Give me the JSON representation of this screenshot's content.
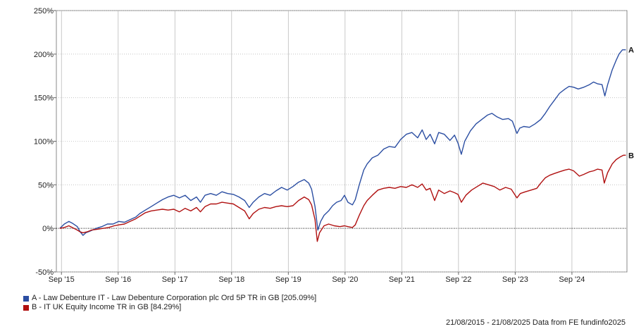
{
  "chart_data": {
    "type": "line",
    "title": "",
    "xlabel": "",
    "ylabel": "",
    "ylim": [
      -50,
      250
    ],
    "y_ticks": [
      -50,
      0,
      50,
      100,
      150,
      200,
      250
    ],
    "y_tick_labels": [
      "-50%",
      "0%",
      "50%",
      "100%",
      "150%",
      "200%",
      "250%"
    ],
    "x_range": [
      2015.58,
      2025.64
    ],
    "x_ticks": [
      {
        "t": 2015.67,
        "label": "Sep '15"
      },
      {
        "t": 2016.67,
        "label": "Sep '16"
      },
      {
        "t": 2017.67,
        "label": "Sep '17"
      },
      {
        "t": 2018.67,
        "label": "Sep '18"
      },
      {
        "t": 2019.67,
        "label": "Sep '19"
      },
      {
        "t": 2020.67,
        "label": "Sep '20"
      },
      {
        "t": 2021.67,
        "label": "Sep '21"
      },
      {
        "t": 2022.67,
        "label": "Sep '22"
      },
      {
        "t": 2023.67,
        "label": "Sep '23"
      },
      {
        "t": 2024.67,
        "label": "Sep '24"
      }
    ],
    "grid": true,
    "zero_line": true,
    "legend_position": "bottom-left",
    "series": [
      {
        "name": "A - Law Debenture IT - Law Debenture Corporation plc Ord 5P TR in GB [205.09%]",
        "short": "A",
        "color": "#2b4ea2",
        "points": [
          [
            2015.64,
            0
          ],
          [
            2015.72,
            5
          ],
          [
            2015.8,
            8
          ],
          [
            2015.86,
            6
          ],
          [
            2015.95,
            2
          ],
          [
            2016.0,
            -4
          ],
          [
            2016.05,
            -8
          ],
          [
            2016.1,
            -5
          ],
          [
            2016.18,
            -3
          ],
          [
            2016.28,
            0
          ],
          [
            2016.38,
            2
          ],
          [
            2016.48,
            5
          ],
          [
            2016.58,
            5
          ],
          [
            2016.68,
            8
          ],
          [
            2016.78,
            7
          ],
          [
            2016.88,
            10
          ],
          [
            2016.98,
            13
          ],
          [
            2017.05,
            17
          ],
          [
            2017.15,
            21
          ],
          [
            2017.25,
            25
          ],
          [
            2017.35,
            29
          ],
          [
            2017.45,
            33
          ],
          [
            2017.55,
            36
          ],
          [
            2017.65,
            38
          ],
          [
            2017.75,
            35
          ],
          [
            2017.85,
            38
          ],
          [
            2017.95,
            32
          ],
          [
            2018.05,
            36
          ],
          [
            2018.12,
            30
          ],
          [
            2018.2,
            38
          ],
          [
            2018.3,
            40
          ],
          [
            2018.4,
            38
          ],
          [
            2018.5,
            42
          ],
          [
            2018.6,
            40
          ],
          [
            2018.7,
            39
          ],
          [
            2018.8,
            36
          ],
          [
            2018.9,
            32
          ],
          [
            2018.98,
            24
          ],
          [
            2019.05,
            30
          ],
          [
            2019.15,
            36
          ],
          [
            2019.25,
            40
          ],
          [
            2019.35,
            38
          ],
          [
            2019.45,
            43
          ],
          [
            2019.55,
            47
          ],
          [
            2019.65,
            44
          ],
          [
            2019.75,
            48
          ],
          [
            2019.85,
            53
          ],
          [
            2019.95,
            56
          ],
          [
            2020.03,
            52
          ],
          [
            2020.08,
            45
          ],
          [
            2020.14,
            25
          ],
          [
            2020.19,
            -2
          ],
          [
            2020.24,
            8
          ],
          [
            2020.3,
            15
          ],
          [
            2020.38,
            20
          ],
          [
            2020.45,
            26
          ],
          [
            2020.52,
            30
          ],
          [
            2020.6,
            32
          ],
          [
            2020.66,
            38
          ],
          [
            2020.72,
            30
          ],
          [
            2020.8,
            27
          ],
          [
            2020.85,
            33
          ],
          [
            2020.92,
            50
          ],
          [
            2021.0,
            67
          ],
          [
            2021.06,
            74
          ],
          [
            2021.15,
            81
          ],
          [
            2021.25,
            84
          ],
          [
            2021.35,
            91
          ],
          [
            2021.45,
            94
          ],
          [
            2021.55,
            93
          ],
          [
            2021.65,
            102
          ],
          [
            2021.75,
            108
          ],
          [
            2021.85,
            110
          ],
          [
            2021.95,
            104
          ],
          [
            2022.03,
            113
          ],
          [
            2022.1,
            102
          ],
          [
            2022.17,
            108
          ],
          [
            2022.25,
            97
          ],
          [
            2022.32,
            110
          ],
          [
            2022.42,
            108
          ],
          [
            2022.52,
            101
          ],
          [
            2022.6,
            107
          ],
          [
            2022.66,
            98
          ],
          [
            2022.72,
            85
          ],
          [
            2022.78,
            100
          ],
          [
            2022.88,
            112
          ],
          [
            2022.98,
            120
          ],
          [
            2023.08,
            125
          ],
          [
            2023.18,
            130
          ],
          [
            2023.26,
            132
          ],
          [
            2023.35,
            128
          ],
          [
            2023.45,
            125
          ],
          [
            2023.55,
            126
          ],
          [
            2023.62,
            123
          ],
          [
            2023.7,
            109
          ],
          [
            2023.75,
            115
          ],
          [
            2023.82,
            117
          ],
          [
            2023.92,
            116
          ],
          [
            2024.02,
            120
          ],
          [
            2024.12,
            125
          ],
          [
            2024.2,
            132
          ],
          [
            2024.28,
            140
          ],
          [
            2024.36,
            147
          ],
          [
            2024.45,
            155
          ],
          [
            2024.55,
            160
          ],
          [
            2024.62,
            163
          ],
          [
            2024.7,
            162
          ],
          [
            2024.78,
            160
          ],
          [
            2024.88,
            162
          ],
          [
            2024.98,
            165
          ],
          [
            2025.05,
            168
          ],
          [
            2025.12,
            166
          ],
          [
            2025.2,
            165
          ],
          [
            2025.25,
            152
          ],
          [
            2025.3,
            165
          ],
          [
            2025.38,
            182
          ],
          [
            2025.45,
            193
          ],
          [
            2025.5,
            200
          ],
          [
            2025.56,
            205
          ],
          [
            2025.62,
            205
          ]
        ]
      },
      {
        "name": "B - IT UK Equity Income TR in GB [84.29%]",
        "short": "B",
        "color": "#b01010",
        "points": [
          [
            2015.64,
            0
          ],
          [
            2015.72,
            1
          ],
          [
            2015.8,
            3
          ],
          [
            2015.86,
            1
          ],
          [
            2015.95,
            -2
          ],
          [
            2016.0,
            -4
          ],
          [
            2016.05,
            -5
          ],
          [
            2016.12,
            -4
          ],
          [
            2016.2,
            -2
          ],
          [
            2016.3,
            -1
          ],
          [
            2016.4,
            0
          ],
          [
            2016.5,
            1
          ],
          [
            2016.6,
            3
          ],
          [
            2016.68,
            4
          ],
          [
            2016.78,
            5
          ],
          [
            2016.88,
            8
          ],
          [
            2016.98,
            11
          ],
          [
            2017.05,
            14
          ],
          [
            2017.15,
            18
          ],
          [
            2017.25,
            20
          ],
          [
            2017.35,
            21
          ],
          [
            2017.45,
            22
          ],
          [
            2017.55,
            21
          ],
          [
            2017.65,
            22
          ],
          [
            2017.75,
            19
          ],
          [
            2017.85,
            23
          ],
          [
            2017.95,
            20
          ],
          [
            2018.05,
            24
          ],
          [
            2018.12,
            19
          ],
          [
            2018.2,
            25
          ],
          [
            2018.3,
            28
          ],
          [
            2018.4,
            28
          ],
          [
            2018.5,
            30
          ],
          [
            2018.6,
            29
          ],
          [
            2018.7,
            28
          ],
          [
            2018.8,
            24
          ],
          [
            2018.9,
            20
          ],
          [
            2018.98,
            11
          ],
          [
            2019.05,
            17
          ],
          [
            2019.15,
            22
          ],
          [
            2019.25,
            24
          ],
          [
            2019.35,
            23
          ],
          [
            2019.45,
            25
          ],
          [
            2019.55,
            26
          ],
          [
            2019.65,
            25
          ],
          [
            2019.75,
            26
          ],
          [
            2019.85,
            32
          ],
          [
            2019.95,
            36
          ],
          [
            2020.03,
            33
          ],
          [
            2020.08,
            27
          ],
          [
            2020.14,
            10
          ],
          [
            2020.18,
            -15
          ],
          [
            2020.22,
            -5
          ],
          [
            2020.3,
            3
          ],
          [
            2020.38,
            5
          ],
          [
            2020.48,
            3
          ],
          [
            2020.58,
            2
          ],
          [
            2020.66,
            3
          ],
          [
            2020.72,
            2
          ],
          [
            2020.8,
            1
          ],
          [
            2020.85,
            4
          ],
          [
            2020.92,
            15
          ],
          [
            2021.0,
            26
          ],
          [
            2021.06,
            32
          ],
          [
            2021.15,
            38
          ],
          [
            2021.25,
            44
          ],
          [
            2021.35,
            46
          ],
          [
            2021.45,
            47
          ],
          [
            2021.55,
            46
          ],
          [
            2021.65,
            48
          ],
          [
            2021.75,
            47
          ],
          [
            2021.85,
            50
          ],
          [
            2021.95,
            47
          ],
          [
            2022.03,
            51
          ],
          [
            2022.1,
            44
          ],
          [
            2022.17,
            46
          ],
          [
            2022.25,
            32
          ],
          [
            2022.32,
            44
          ],
          [
            2022.42,
            40
          ],
          [
            2022.52,
            43
          ],
          [
            2022.6,
            41
          ],
          [
            2022.66,
            39
          ],
          [
            2022.72,
            30
          ],
          [
            2022.8,
            38
          ],
          [
            2022.9,
            44
          ],
          [
            2023.0,
            48
          ],
          [
            2023.1,
            52
          ],
          [
            2023.2,
            50
          ],
          [
            2023.3,
            48
          ],
          [
            2023.4,
            44
          ],
          [
            2023.5,
            47
          ],
          [
            2023.6,
            45
          ],
          [
            2023.7,
            35
          ],
          [
            2023.76,
            40
          ],
          [
            2023.85,
            42
          ],
          [
            2023.95,
            44
          ],
          [
            2024.05,
            46
          ],
          [
            2024.12,
            52
          ],
          [
            2024.2,
            58
          ],
          [
            2024.28,
            61
          ],
          [
            2024.36,
            63
          ],
          [
            2024.45,
            65
          ],
          [
            2024.55,
            67
          ],
          [
            2024.62,
            68
          ],
          [
            2024.7,
            66
          ],
          [
            2024.8,
            60
          ],
          [
            2024.88,
            62
          ],
          [
            2024.98,
            65
          ],
          [
            2025.05,
            66
          ],
          [
            2025.12,
            68
          ],
          [
            2025.2,
            67
          ],
          [
            2025.24,
            52
          ],
          [
            2025.3,
            64
          ],
          [
            2025.38,
            74
          ],
          [
            2025.45,
            79
          ],
          [
            2025.52,
            82
          ],
          [
            2025.58,
            84
          ],
          [
            2025.62,
            84
          ]
        ]
      }
    ]
  },
  "legend": [
    {
      "label": "A - Law Debenture IT - Law Debenture Corporation plc Ord 5P TR in GB [205.09%]",
      "color": "#2b4ea2"
    },
    {
      "label": "B - IT UK Equity Income TR in GB [84.29%]",
      "color": "#b01010"
    }
  ],
  "footer": "21/08/2015 - 21/08/2025 Data from FE fundinfo2025"
}
